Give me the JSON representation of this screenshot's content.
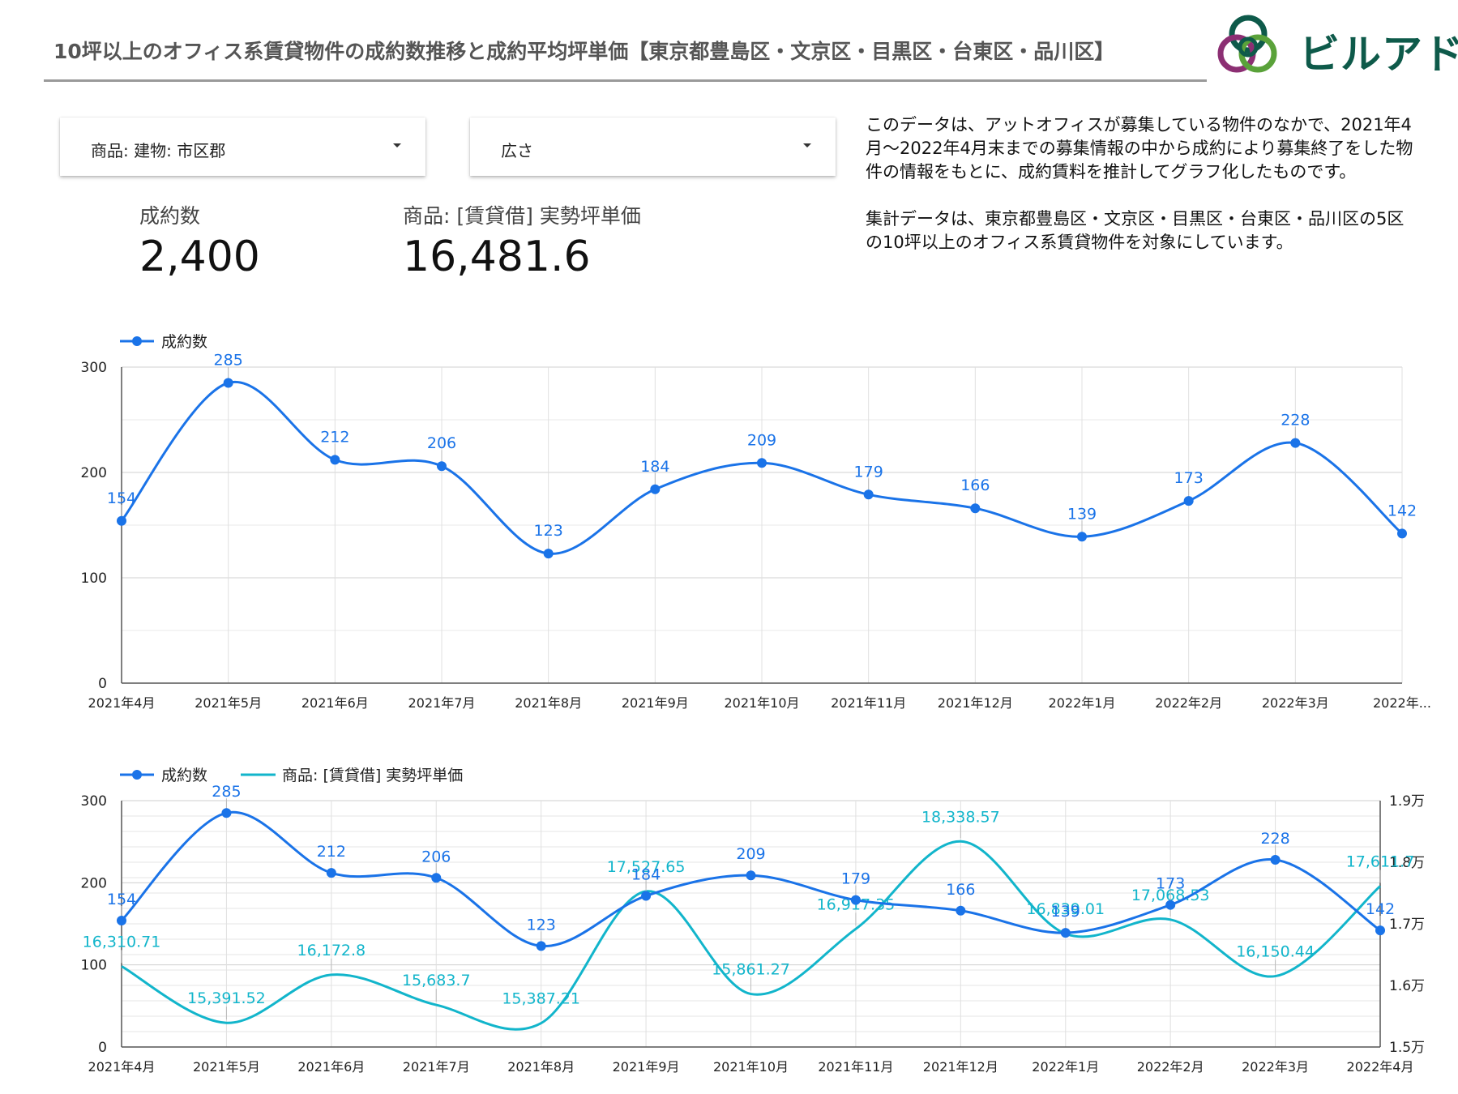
{
  "header": {
    "title": "10坪以上のオフィス系賃貸物件の成約数推移と成約平均坪単価【東京都豊島区・文京区・目黒区・台東区・品川区】",
    "logo_text": "ビルアド"
  },
  "filters": [
    {
      "label": "商品: 建物: 市区郡"
    },
    {
      "label": "広さ"
    }
  ],
  "scorecards": [
    {
      "label": "成約数",
      "value": "2,400"
    },
    {
      "label": "商品: [賃貸借] 実勢坪単価",
      "value": "16,481.6"
    }
  ],
  "description": {
    "paragraph1": "このデータは、アットオフィスが募集している物件のなかで、2021年4月〜2022年4月末までの募集情報の中から成約により募集終了をした物件の情報をもとに、成約賃料を推計してグラフ化したものです。",
    "paragraph2": "集計データは、東京都豊島区・文京区・目黒区・台東区・品川区の5区の10坪以上のオフィス系賃貸物件を対象にしています。"
  },
  "colors": {
    "series1": "#1a73e8",
    "series2": "#12b5cb",
    "grid": "#dcdcdc",
    "axis_text": "#222222"
  },
  "chart_data": [
    {
      "type": "line",
      "legend": "top-left",
      "grid": true,
      "categories": [
        "2021年4月",
        "2021年5月",
        "2021年6月",
        "2021年7月",
        "2021年8月",
        "2021年9月",
        "2021年10月",
        "2021年11月",
        "2021年12月",
        "2022年1月",
        "2022年2月",
        "2022年3月",
        "2022年..."
      ],
      "series": [
        {
          "name": "成約数",
          "values": [
            154,
            285,
            212,
            206,
            123,
            184,
            209,
            179,
            166,
            139,
            173,
            228,
            142
          ],
          "labels": [
            "154",
            "285",
            "212",
            "206",
            "123",
            "184",
            "209",
            "179",
            "166",
            "139",
            "173",
            "228",
            "142"
          ]
        }
      ],
      "ylim": [
        0,
        300
      ],
      "yticks": [
        "0",
        "100",
        "200",
        "300"
      ]
    },
    {
      "type": "line",
      "legend": "top-left",
      "grid": true,
      "categories": [
        "2021年4月",
        "2021年5月",
        "2021年6月",
        "2021年7月",
        "2021年8月",
        "2021年9月",
        "2021年10月",
        "2021年11月",
        "2021年12月",
        "2022年1月",
        "2022年2月",
        "2022年3月",
        "2022年4月"
      ],
      "series": [
        {
          "name": "成約数",
          "axis": "left",
          "values": [
            154,
            285,
            212,
            206,
            123,
            184,
            209,
            179,
            166,
            139,
            173,
            228,
            142
          ],
          "labels": [
            "154",
            "285",
            "212",
            "206",
            "123",
            "184",
            "209",
            "179",
            "166",
            "139",
            "173",
            "228",
            "142"
          ]
        },
        {
          "name": "商品: [賃貸借] 実勢坪単価",
          "axis": "right",
          "values": [
            16310.71,
            15391.52,
            16172.8,
            15683.7,
            15387.21,
            17527.65,
            15861.27,
            16917.35,
            18338.57,
            16839.01,
            17068.53,
            16150.44,
            17611.7
          ],
          "labels": [
            "16,310.71",
            "15,391.52",
            "16,172.8",
            "15,683.7",
            "15,387.21",
            "17,527.65",
            "15,861.27",
            "16,917.35",
            "18,338.57",
            "16,839.01",
            "17,068.53",
            "16,150.44",
            "17,611.7"
          ]
        }
      ],
      "ylim": [
        0,
        300
      ],
      "y2lim": [
        15000,
        19000
      ],
      "yticks": [
        "0",
        "100",
        "200",
        "300"
      ],
      "y2ticks": [
        "1.5万",
        "1.6万",
        "1.7万",
        "1.8万",
        "1.9万"
      ]
    }
  ]
}
